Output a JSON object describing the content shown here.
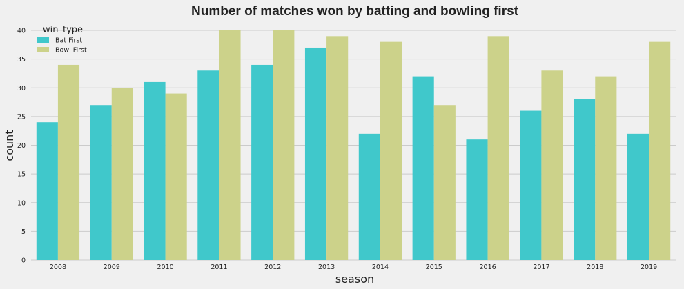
{
  "chart_data": {
    "type": "bar",
    "title": "Number of matches won by batting and bowling first",
    "xlabel": "season",
    "ylabel": "count",
    "categories": [
      "2008",
      "2009",
      "2010",
      "2011",
      "2012",
      "2013",
      "2014",
      "2015",
      "2016",
      "2017",
      "2018",
      "2019"
    ],
    "series": [
      {
        "name": "Bat First",
        "color": "#40c8cb",
        "values": [
          24,
          27,
          31,
          33,
          34,
          37,
          22,
          32,
          21,
          26,
          28,
          22
        ]
      },
      {
        "name": "Bowl First",
        "color": "#ccd28a",
        "values": [
          34,
          30,
          29,
          40,
          40,
          39,
          38,
          27,
          39,
          33,
          32,
          38
        ]
      }
    ],
    "ylim": [
      0,
      40
    ],
    "yticks": [
      0,
      5,
      10,
      15,
      20,
      25,
      30,
      35,
      40
    ],
    "grid": true,
    "legend": {
      "title": "win_type",
      "placement": "top-left"
    }
  }
}
